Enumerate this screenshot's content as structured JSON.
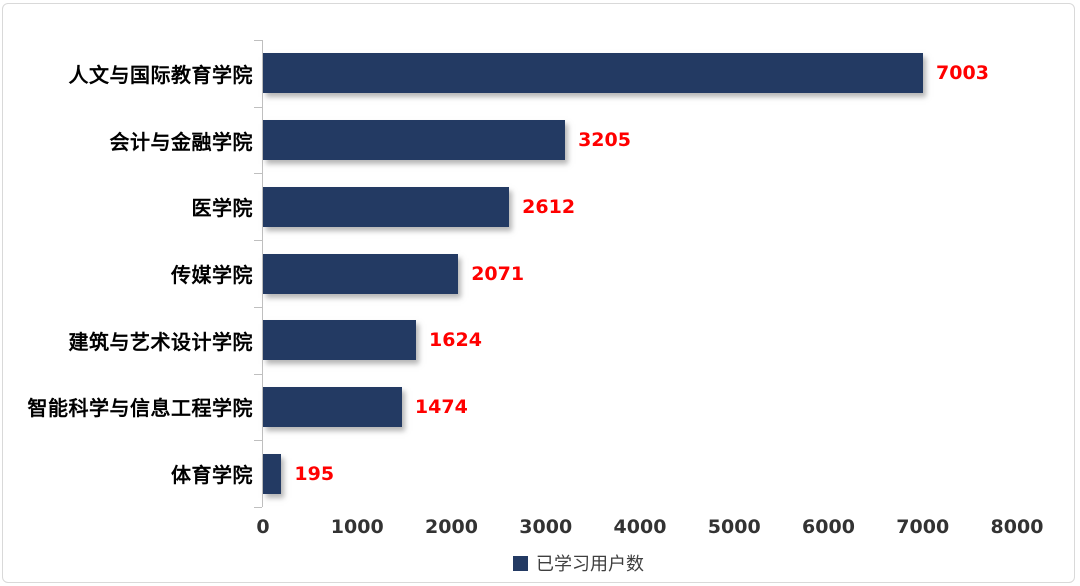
{
  "chart_data": {
    "type": "bar",
    "orientation": "horizontal",
    "title": "",
    "xlabel": "",
    "ylabel": "",
    "categories": [
      "人文与国际教育学院",
      "会计与金融学院",
      "医学院",
      "传媒学院",
      "建筑与艺术设计学院",
      "智能科学与信息工程学院",
      "体育学院"
    ],
    "series": [
      {
        "name": "已学习用户数",
        "values": [
          7003,
          3205,
          2612,
          2071,
          1624,
          1474,
          195
        ],
        "data_labels": [
          "7003",
          "3205",
          "2612",
          "2071",
          "1624",
          "1474",
          "195"
        ]
      }
    ],
    "xlim": [
      0,
      8000
    ],
    "x_ticks": [
      "0",
      "1000",
      "2000",
      "3000",
      "4000",
      "5000",
      "6000",
      "7000",
      "8000"
    ],
    "grid": false,
    "legend_position": "bottom-center"
  },
  "legend": {
    "label": "已学习用户数"
  },
  "colors": {
    "bar_fill": "#233a63",
    "value_label": "#ff0000",
    "axis_line": "#bfbfbf",
    "tick_text": "#333333",
    "category_text": "#000000",
    "chart_border": "#d9d9d9",
    "legend_text": "#3f3f3f",
    "background": "#ffffff"
  }
}
